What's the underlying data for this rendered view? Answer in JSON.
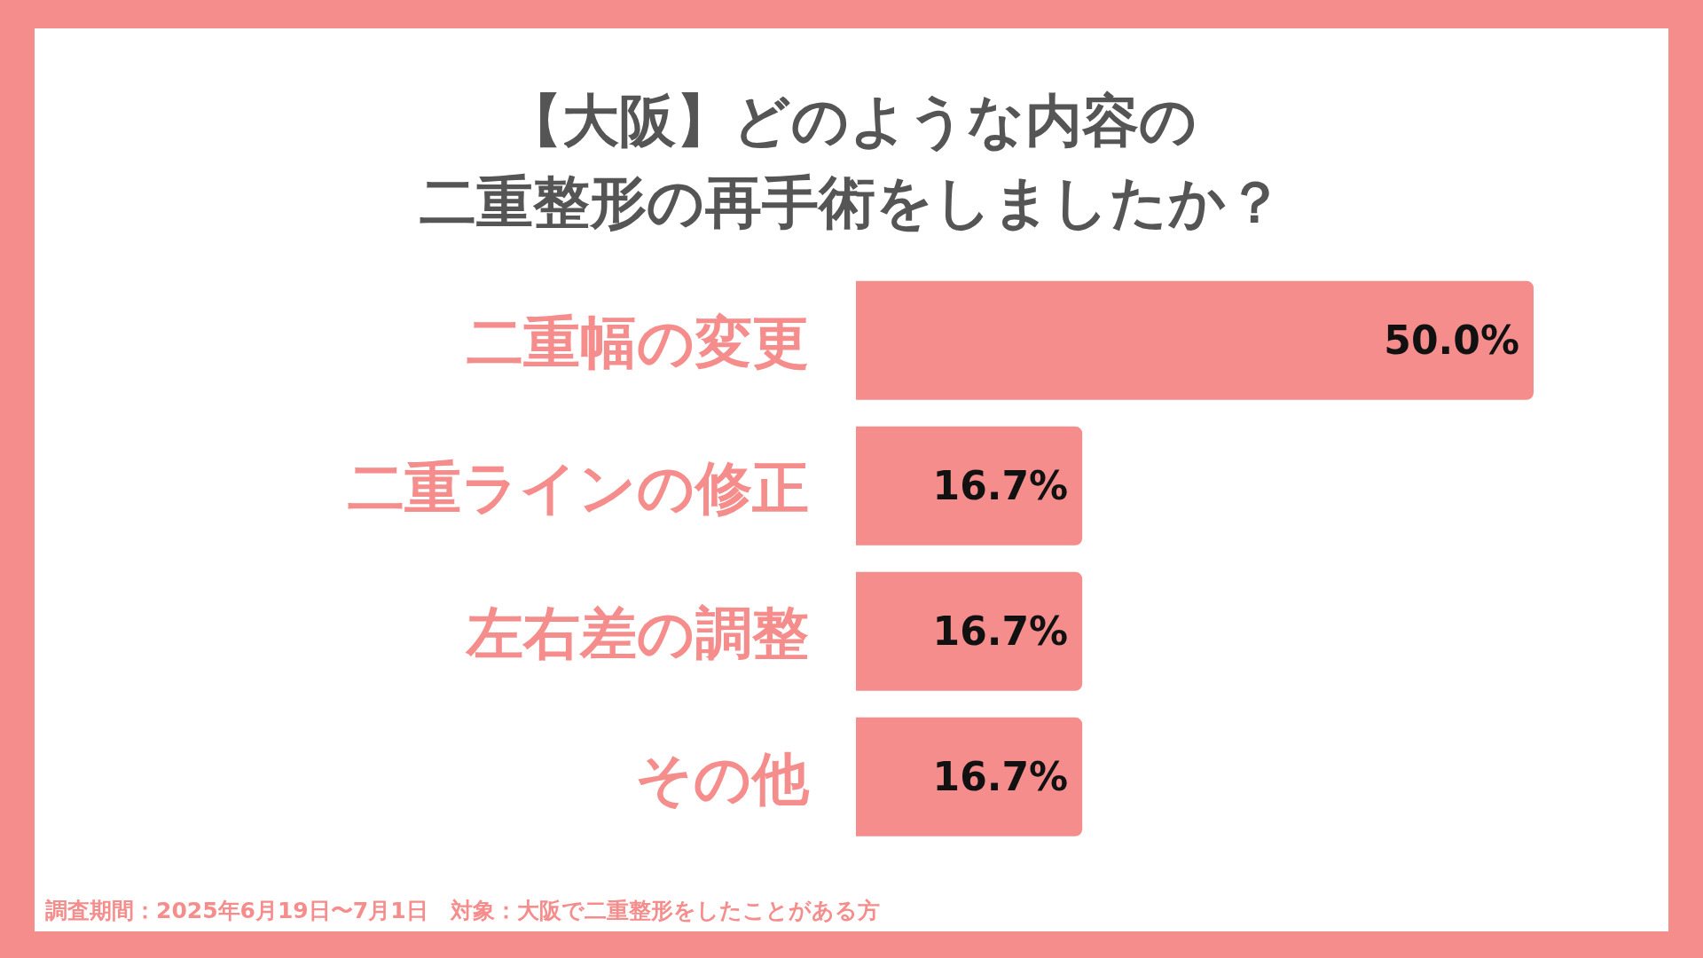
{
  "chart_data": {
    "type": "bar",
    "orientation": "horizontal",
    "title": "【大阪】どのような内容の",
    "subtitle": "二重整形の再手術をしましたか？",
    "categories": [
      "二重幅の変更",
      "二重ラインの修正",
      "左右差の調整",
      "その他"
    ],
    "values": [
      50.0,
      16.7,
      16.7,
      16.7
    ],
    "value_labels": [
      "50.0%",
      "16.7%",
      "16.7%",
      "16.7%"
    ],
    "color": "#f58d8c",
    "annotations": [
      "調査期間：2025年6月19日〜7月1日　対象：大阪で二重整形をしたことがある方"
    ]
  }
}
